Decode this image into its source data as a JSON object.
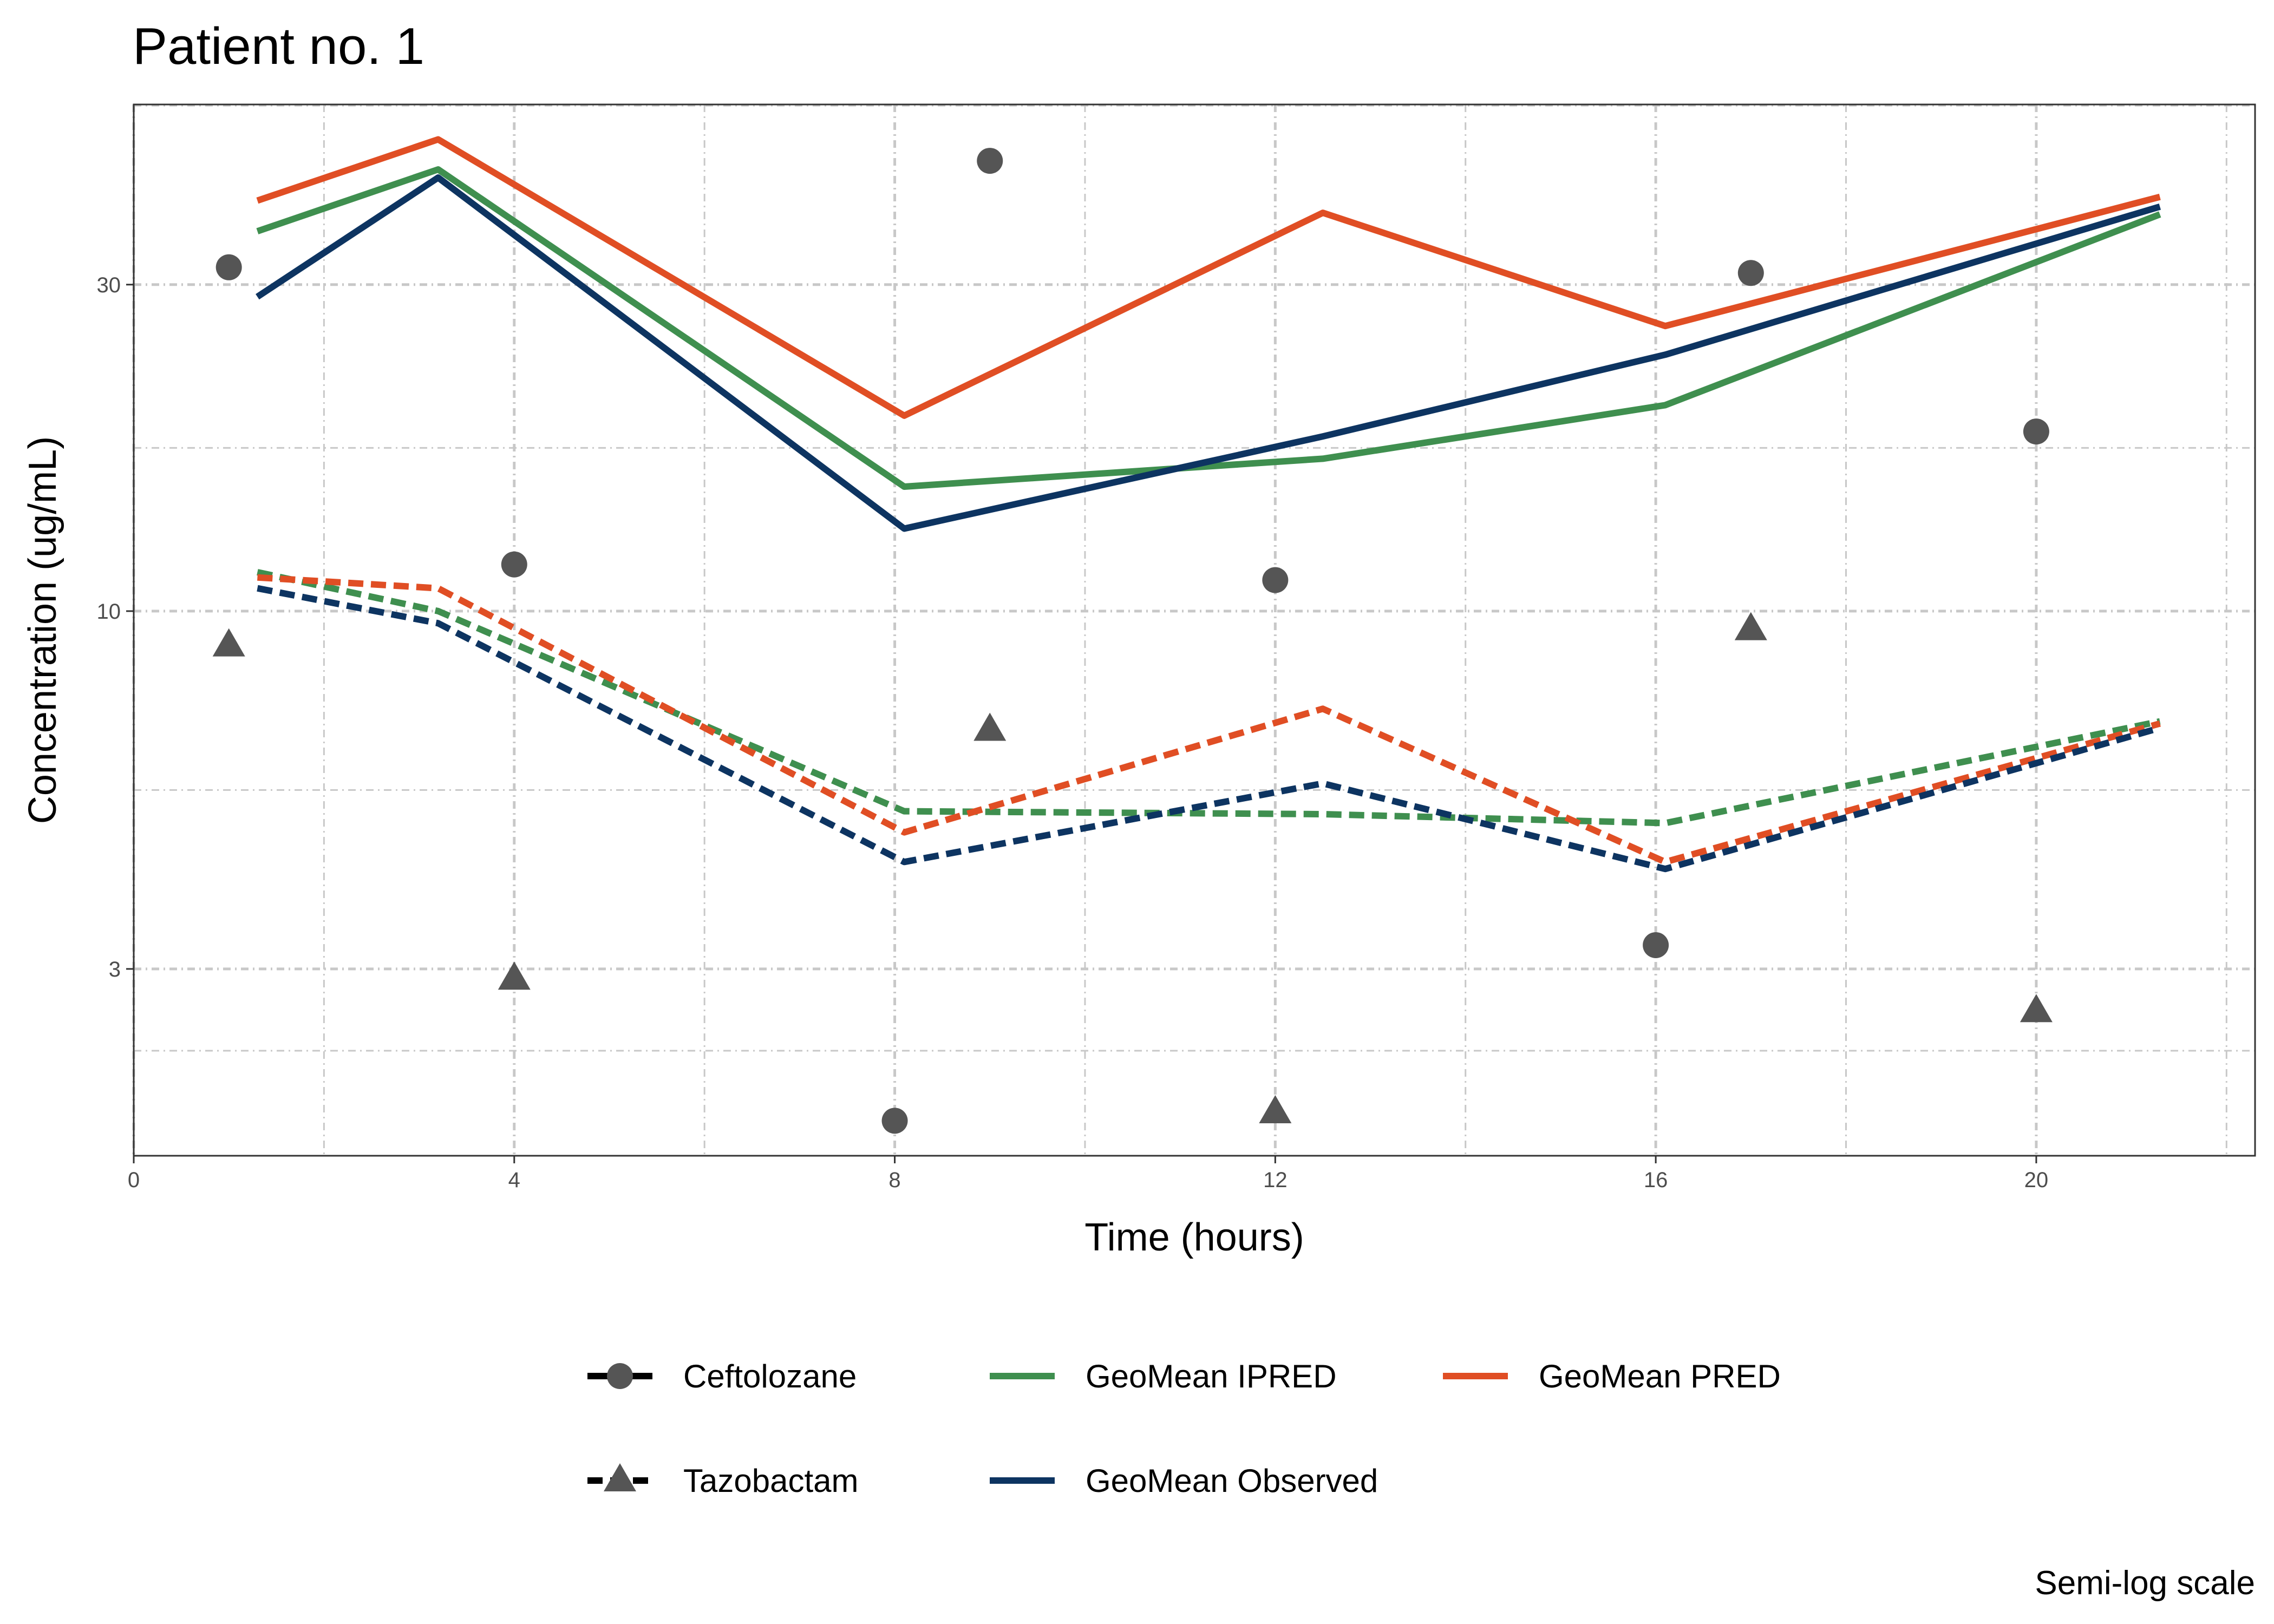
{
  "chart_data": {
    "type": "line",
    "title": "Patient no. 1",
    "caption": "Semi-log scale",
    "xlabel": "Time (hours)",
    "ylabel": "Concentration (ug/mL)",
    "xlim": [
      0,
      22.3
    ],
    "ylim": [
      1.6,
      55
    ],
    "y_scale": "log",
    "grid": true,
    "x_ticks": [
      0,
      4,
      8,
      12,
      16,
      20
    ],
    "y_ticks": [
      3,
      10,
      30
    ],
    "legend_position": "bottom",
    "legend": {
      "drug": [
        {
          "label": "Ceftolozane",
          "linetype": "solid",
          "marker": "circle"
        },
        {
          "label": "Tazobactam",
          "linetype": "dashed",
          "marker": "triangle"
        }
      ],
      "measure": [
        {
          "label": "GeoMean IPRED",
          "color": "#3f8f4f"
        },
        {
          "label": "GeoMean PRED",
          "color": "#e04e24"
        },
        {
          "label": "GeoMean Observed",
          "color": "#0d3461"
        }
      ]
    },
    "series": [
      {
        "drug": "Ceftolozane",
        "measure": "GeoMean IPRED",
        "color": "#3f8f4f",
        "dashed": false,
        "x": [
          1.3,
          3.2,
          8.1,
          12.5,
          16.1,
          21.3
        ],
        "y": [
          35.9,
          44.2,
          15.2,
          16.7,
          20.0,
          38.0
        ]
      },
      {
        "drug": "Ceftolozane",
        "measure": "GeoMean PRED",
        "color": "#e04e24",
        "dashed": false,
        "x": [
          1.3,
          3.2,
          8.1,
          12.5,
          16.1,
          21.3
        ],
        "y": [
          39.8,
          48.9,
          19.3,
          38.2,
          26.1,
          40.3
        ]
      },
      {
        "drug": "Ceftolozane",
        "measure": "GeoMean Observed",
        "color": "#0d3461",
        "dashed": false,
        "x": [
          1.3,
          3.2,
          8.1,
          12.5,
          16.1,
          21.3
        ],
        "y": [
          28.8,
          43.0,
          13.2,
          18.0,
          23.7,
          39.0
        ]
      },
      {
        "drug": "Tazobactam",
        "measure": "GeoMean IPRED",
        "color": "#3f8f4f",
        "dashed": false,
        "x": [
          1.3,
          3.2,
          8.1,
          12.5,
          16.1,
          21.3
        ],
        "y": [
          11.4,
          10.0,
          5.1,
          5.05,
          4.9,
          6.9
        ]
      },
      {
        "drug": "Tazobactam",
        "measure": "GeoMean PRED",
        "color": "#e04e24",
        "dashed": false,
        "x": [
          1.3,
          3.2,
          8.1,
          12.5,
          16.1,
          21.3
        ],
        "y": [
          11.2,
          10.8,
          4.75,
          7.2,
          4.3,
          6.85
        ]
      },
      {
        "drug": "Tazobactam",
        "measure": "GeoMean Observed",
        "color": "#0d3461",
        "dashed": false,
        "x": [
          1.3,
          3.2,
          8.1,
          12.5,
          16.1,
          21.3
        ],
        "y": [
          10.8,
          9.6,
          4.3,
          5.6,
          4.2,
          6.75
        ]
      }
    ],
    "observed_points": [
      {
        "drug": "Ceftolozane",
        "marker": "circle",
        "color": "#555555",
        "x": [
          1,
          4,
          8,
          9,
          12,
          16,
          17,
          20
        ],
        "y": [
          31.8,
          11.7,
          1.8,
          45.5,
          11.1,
          3.25,
          31.2,
          18.3
        ]
      },
      {
        "drug": "Tazobactam",
        "marker": "triangle",
        "color": "#555555",
        "x": [
          1,
          4,
          9,
          12,
          17,
          20
        ],
        "y": [
          8.9,
          2.9,
          6.7,
          1.85,
          9.4,
          2.6
        ]
      }
    ]
  }
}
